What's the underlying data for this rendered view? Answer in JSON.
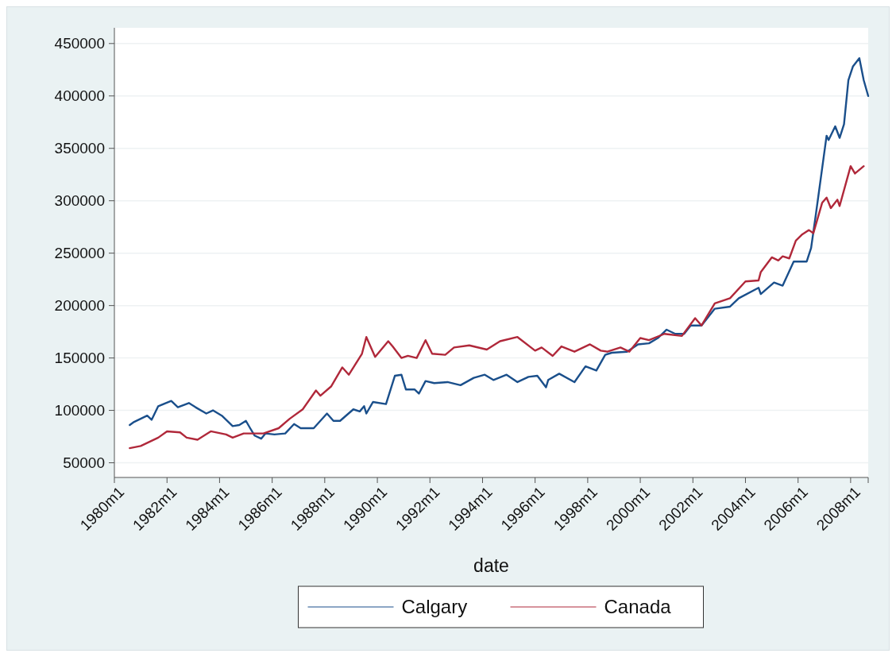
{
  "chart_data": {
    "type": "line",
    "xlabel": "date",
    "xlim": [
      "1980-01",
      "2008-09"
    ],
    "ylim": [
      36000,
      465000
    ],
    "xticks": [
      {
        "value": "1980-01",
        "label": "1980m1"
      },
      {
        "value": "1982-01",
        "label": "1982m1"
      },
      {
        "value": "1984-01",
        "label": "1984m1"
      },
      {
        "value": "1986-01",
        "label": "1986m1"
      },
      {
        "value": "1988-01",
        "label": "1988m1"
      },
      {
        "value": "1990-01",
        "label": "1990m1"
      },
      {
        "value": "1992-01",
        "label": "1992m1"
      },
      {
        "value": "1994-01",
        "label": "1994m1"
      },
      {
        "value": "1996-01",
        "label": "1996m1"
      },
      {
        "value": "1998-01",
        "label": "1998m1"
      },
      {
        "value": "2000-01",
        "label": "2000m1"
      },
      {
        "value": "2002-01",
        "label": "2002m1"
      },
      {
        "value": "2004-01",
        "label": "2004m1"
      },
      {
        "value": "2006-01",
        "label": "2006m1"
      },
      {
        "value": "2008-01",
        "label": "2008m1"
      },
      {
        "value": "2008-09",
        "label": null
      }
    ],
    "yticks": [
      50000,
      100000,
      150000,
      200000,
      250000,
      300000,
      350000,
      400000,
      450000
    ],
    "grid": "y",
    "legend": "bottom",
    "line_style": "solid",
    "series": [
      {
        "name": "Calgary",
        "color": "#1a4f8b",
        "x": [
          "1980-08",
          "1980-10",
          "1981-04",
          "1981-06",
          "1981-09",
          "1982-03",
          "1982-06",
          "1982-11",
          "1983-02",
          "1983-07",
          "1983-10",
          "1984-02",
          "1984-07",
          "1984-10",
          "1985-01",
          "1985-03",
          "1985-05",
          "1985-08",
          "1985-10",
          "1986-02",
          "1986-07",
          "1986-11",
          "1987-02",
          "1987-08",
          "1988-02",
          "1988-05",
          "1988-08",
          "1989-02",
          "1989-05",
          "1989-07",
          "1989-08",
          "1989-11",
          "1990-05",
          "1990-09",
          "1990-12",
          "1991-02",
          "1991-06",
          "1991-08",
          "1991-11",
          "1992-03",
          "1992-09",
          "1993-03",
          "1993-09",
          "1994-02",
          "1994-06",
          "1994-12",
          "1995-05",
          "1995-10",
          "1996-02",
          "1996-06",
          "1996-07",
          "1996-12",
          "1997-07",
          "1997-12",
          "1998-05",
          "1998-09",
          "1998-12",
          "1999-07",
          "1999-12",
          "2000-05",
          "2000-09",
          "2001-01",
          "2001-05",
          "2001-09",
          "2001-12",
          "2002-05",
          "2002-11",
          "2003-06",
          "2003-10",
          "2004-07",
          "2004-08",
          "2005-02",
          "2005-06",
          "2005-11",
          "2006-05",
          "2006-07",
          "2006-09",
          "2007-02",
          "2007-03",
          "2007-06",
          "2007-08",
          "2007-10",
          "2007-12",
          "2008-02",
          "2008-05",
          "2008-07",
          "2008-09"
        ],
        "values": [
          86000,
          89000,
          95000,
          91000,
          104000,
          109000,
          103000,
          107000,
          103000,
          97000,
          100000,
          95000,
          85000,
          86000,
          90000,
          83000,
          76000,
          73000,
          78000,
          77000,
          78000,
          87000,
          83000,
          83000,
          97000,
          90000,
          90000,
          101000,
          99000,
          104000,
          97000,
          108000,
          106000,
          133000,
          134000,
          120000,
          120000,
          116000,
          128000,
          126000,
          127000,
          124000,
          131000,
          134000,
          129000,
          134000,
          127000,
          132000,
          133000,
          122000,
          129000,
          135000,
          127000,
          142000,
          138000,
          153000,
          155000,
          156000,
          163000,
          164000,
          169000,
          177000,
          173000,
          173000,
          181000,
          181000,
          197000,
          199000,
          207000,
          217000,
          211000,
          222000,
          219000,
          242000,
          242000,
          255000,
          285000,
          362000,
          358000,
          371000,
          360000,
          373000,
          415000,
          428000,
          436000,
          415000,
          400000
        ]
      },
      {
        "name": "Canada",
        "color": "#b0283a",
        "x": [
          "1980-08",
          "1981-01",
          "1981-09",
          "1982-01",
          "1982-07",
          "1982-10",
          "1983-03",
          "1983-09",
          "1984-04",
          "1984-07",
          "1984-12",
          "1985-09",
          "1986-04",
          "1986-09",
          "1987-03",
          "1987-09",
          "1987-11",
          "1988-04",
          "1988-09",
          "1988-12",
          "1989-06",
          "1989-08",
          "1989-12",
          "1990-06",
          "1990-08",
          "1990-12",
          "1991-03",
          "1991-07",
          "1991-11",
          "1992-02",
          "1992-08",
          "1992-12",
          "1993-07",
          "1994-03",
          "1994-09",
          "1995-05",
          "1996-01",
          "1996-04",
          "1996-09",
          "1997-01",
          "1997-07",
          "1998-02",
          "1998-07",
          "1998-10",
          "1999-04",
          "1999-08",
          "2000-01",
          "2000-05",
          "2000-12",
          "2001-08",
          "2002-02",
          "2002-05",
          "2002-11",
          "2003-06",
          "2004-01",
          "2004-07",
          "2004-08",
          "2005-01",
          "2005-04",
          "2005-06",
          "2005-09",
          "2005-12",
          "2006-03",
          "2006-06",
          "2006-08",
          "2006-12",
          "2007-02",
          "2007-04",
          "2007-07",
          "2007-08",
          "2008-01",
          "2008-03",
          "2008-07"
        ],
        "values": [
          64000,
          66000,
          74000,
          80000,
          79000,
          74000,
          72000,
          80000,
          77000,
          74000,
          78000,
          78000,
          83000,
          92000,
          101000,
          119000,
          114000,
          123000,
          141000,
          134000,
          154000,
          170000,
          151000,
          166000,
          161000,
          150000,
          152000,
          150000,
          167000,
          154000,
          153000,
          160000,
          162000,
          158000,
          166000,
          170000,
          157000,
          160000,
          152000,
          161000,
          156000,
          163000,
          157000,
          156000,
          160000,
          156000,
          169000,
          167000,
          173000,
          171000,
          188000,
          181000,
          202000,
          207000,
          223000,
          224000,
          232000,
          246000,
          243000,
          247000,
          245000,
          262000,
          268000,
          272000,
          269000,
          298000,
          303000,
          293000,
          301000,
          295000,
          333000,
          326000,
          333000
        ]
      }
    ]
  }
}
